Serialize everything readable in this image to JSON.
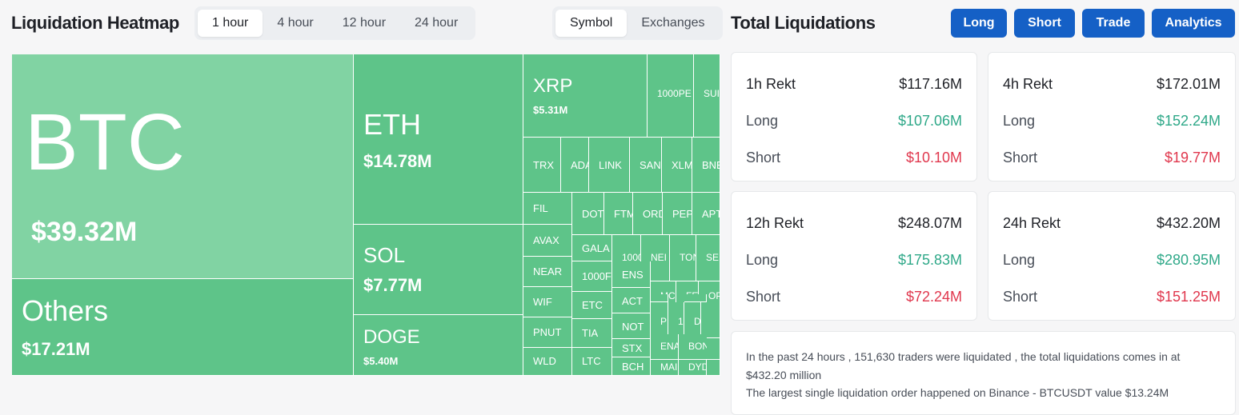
{
  "heatmap": {
    "title": "Liquidation Heatmap",
    "timeframes": [
      "1 hour",
      "4 hour",
      "12 hour",
      "24 hour"
    ],
    "active_timeframe": "1 hour",
    "modes": [
      "Symbol",
      "Exchanges"
    ],
    "active_mode": "Symbol",
    "colors": {
      "tile": "#5ec489",
      "btc": "#81d3a3"
    },
    "tiles": [
      {
        "symbol": "BTC",
        "value": "$39.32M"
      },
      {
        "symbol": "Others",
        "value": "$17.21M"
      },
      {
        "symbol": "ETH",
        "value": "$14.78M"
      },
      {
        "symbol": "SOL",
        "value": "$7.77M"
      },
      {
        "symbol": "DOGE",
        "value": "$5.40M"
      },
      {
        "symbol": "XRP",
        "value": "$5.31M"
      },
      {
        "symbol": "1000PE",
        "value": ""
      },
      {
        "symbol": "SUI",
        "value": ""
      },
      {
        "symbol": "TRX",
        "value": ""
      },
      {
        "symbol": "ADA",
        "value": ""
      },
      {
        "symbol": "LINK",
        "value": ""
      },
      {
        "symbol": "SAN",
        "value": ""
      },
      {
        "symbol": "XLM",
        "value": ""
      },
      {
        "symbol": "BNE",
        "value": ""
      },
      {
        "symbol": "FIL",
        "value": ""
      },
      {
        "symbol": "DOT",
        "value": ""
      },
      {
        "symbol": "FTM",
        "value": ""
      },
      {
        "symbol": "ORD",
        "value": ""
      },
      {
        "symbol": "PEP",
        "value": ""
      },
      {
        "symbol": "APT",
        "value": ""
      },
      {
        "symbol": "AVAX",
        "value": ""
      },
      {
        "symbol": "GALA",
        "value": ""
      },
      {
        "symbol": "1000",
        "value": ""
      },
      {
        "symbol": "NEI",
        "value": ""
      },
      {
        "symbol": "TON",
        "value": ""
      },
      {
        "symbol": "SEI",
        "value": ""
      },
      {
        "symbol": "NEAR",
        "value": ""
      },
      {
        "symbol": "1000F",
        "value": ""
      },
      {
        "symbol": "ENS",
        "value": ""
      },
      {
        "symbol": "MC",
        "value": ""
      },
      {
        "symbol": "FE",
        "value": ""
      },
      {
        "symbol": "OP",
        "value": ""
      },
      {
        "symbol": "WIF",
        "value": ""
      },
      {
        "symbol": "ETC",
        "value": ""
      },
      {
        "symbol": "ACT",
        "value": ""
      },
      {
        "symbol": "PNUT",
        "value": ""
      },
      {
        "symbol": "TIA",
        "value": ""
      },
      {
        "symbol": "NOT",
        "value": ""
      },
      {
        "symbol": "P",
        "value": ""
      },
      {
        "symbol": "1(",
        "value": ""
      },
      {
        "symbol": "D",
        "value": ""
      },
      {
        "symbol": "H",
        "value": ""
      },
      {
        "symbol": "STX",
        "value": ""
      },
      {
        "symbol": "ENA",
        "value": ""
      },
      {
        "symbol": "BON",
        "value": ""
      },
      {
        "symbol": "WLD",
        "value": ""
      },
      {
        "symbol": "LTC",
        "value": ""
      },
      {
        "symbol": "BCH",
        "value": ""
      },
      {
        "symbol": "MAI",
        "value": ""
      },
      {
        "symbol": "DYD",
        "value": ""
      },
      {
        "symbol": "",
        "value": ""
      },
      {
        "symbol": "",
        "value": ""
      },
      {
        "symbol": "",
        "value": ""
      },
      {
        "symbol": "",
        "value": ""
      },
      {
        "symbol": "",
        "value": ""
      }
    ]
  },
  "total": {
    "title": "Total Liquidations",
    "buttons": [
      "Long",
      "Short",
      "Trade",
      "Analytics"
    ],
    "button_color": "#1560c6",
    "long_color": "#2ea888",
    "short_color": "#e0374d",
    "cards": [
      {
        "label": "1h Rekt",
        "total": "$117.16M",
        "long_label": "Long",
        "long": "$107.06M",
        "short_label": "Short",
        "short": "$10.10M"
      },
      {
        "label": "4h Rekt",
        "total": "$172.01M",
        "long_label": "Long",
        "long": "$152.24M",
        "short_label": "Short",
        "short": "$19.77M"
      },
      {
        "label": "12h Rekt",
        "total": "$248.07M",
        "long_label": "Long",
        "long": "$175.83M",
        "short_label": "Short",
        "short": "$72.24M"
      },
      {
        "label": "24h Rekt",
        "total": "$432.20M",
        "long_label": "Long",
        "long": "$280.95M",
        "short_label": "Short",
        "short": "$151.25M"
      }
    ],
    "summary": [
      "In the past 24 hours , 151,630 traders were liquidated , the total liquidations comes in at $432.20 million",
      "The largest single liquidation order happened on Binance - BTCUSDT value $13.24M"
    ]
  }
}
